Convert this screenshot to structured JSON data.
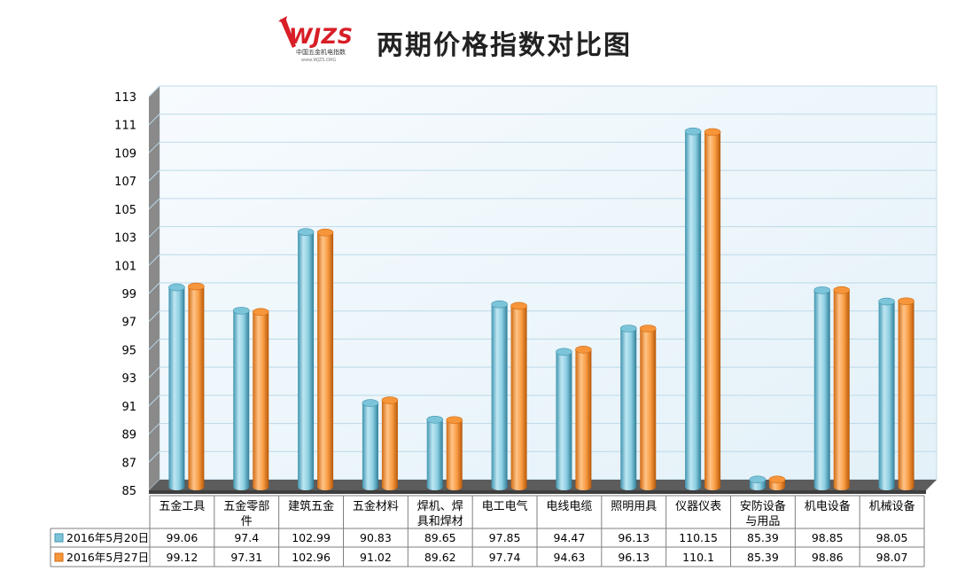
{
  "header": {
    "title": "两期价格指数对比图",
    "logo_text": "WJZS",
    "logo_subtitle": "中国五金机电指数",
    "logo_url": "www.WJZS.ORG"
  },
  "colors": {
    "series1": "#7cc4d9",
    "series1_dark": "#3f95b0",
    "series2": "#f7953a",
    "series2_dark": "#d06a12",
    "wall": "#eaf5fb",
    "grid": "#bcd9e8",
    "floor": "#5c5c5c",
    "logo_red": "#d81e26"
  },
  "chart_data": {
    "type": "bar",
    "title": "两期价格指数对比图",
    "categories": [
      [
        "五金工具"
      ],
      [
        "五金零部",
        "件"
      ],
      [
        "建筑五金"
      ],
      [
        "五金材料"
      ],
      [
        "焊机、焊",
        "具和焊材"
      ],
      [
        "电工电气"
      ],
      [
        "电线电缆"
      ],
      [
        "照明用具"
      ],
      [
        "仪器仪表"
      ],
      [
        "安防设备",
        "与用品"
      ],
      [
        "机电设备"
      ],
      [
        "机械设备"
      ]
    ],
    "series": [
      {
        "name": "2016年5月20日",
        "values": [
          99.06,
          97.4,
          102.99,
          90.83,
          89.65,
          97.85,
          94.47,
          96.13,
          110.15,
          85.39,
          98.85,
          98.05
        ]
      },
      {
        "name": "2016年5月27日",
        "values": [
          99.12,
          97.31,
          102.96,
          91.02,
          89.62,
          97.74,
          94.63,
          96.13,
          110.1,
          85.39,
          98.86,
          98.07
        ]
      }
    ],
    "ylim": [
      85,
      113
    ],
    "yticks": [
      85,
      87,
      89,
      91,
      93,
      95,
      97,
      99,
      101,
      103,
      105,
      107,
      109,
      111,
      113
    ],
    "value_strings": [
      [
        "99.06",
        "97.4",
        "102.99",
        "90.83",
        "89.65",
        "97.85",
        "94.47",
        "96.13",
        "110.15",
        "85.39",
        "98.85",
        "98.05"
      ],
      [
        "99.12",
        "97.31",
        "102.96",
        "91.02",
        "89.62",
        "97.74",
        "94.63",
        "96.13",
        "110.1",
        "85.39",
        "98.86",
        "98.07"
      ]
    ],
    "grid": true,
    "legend": "data-table",
    "style": "3d-cylinder"
  }
}
